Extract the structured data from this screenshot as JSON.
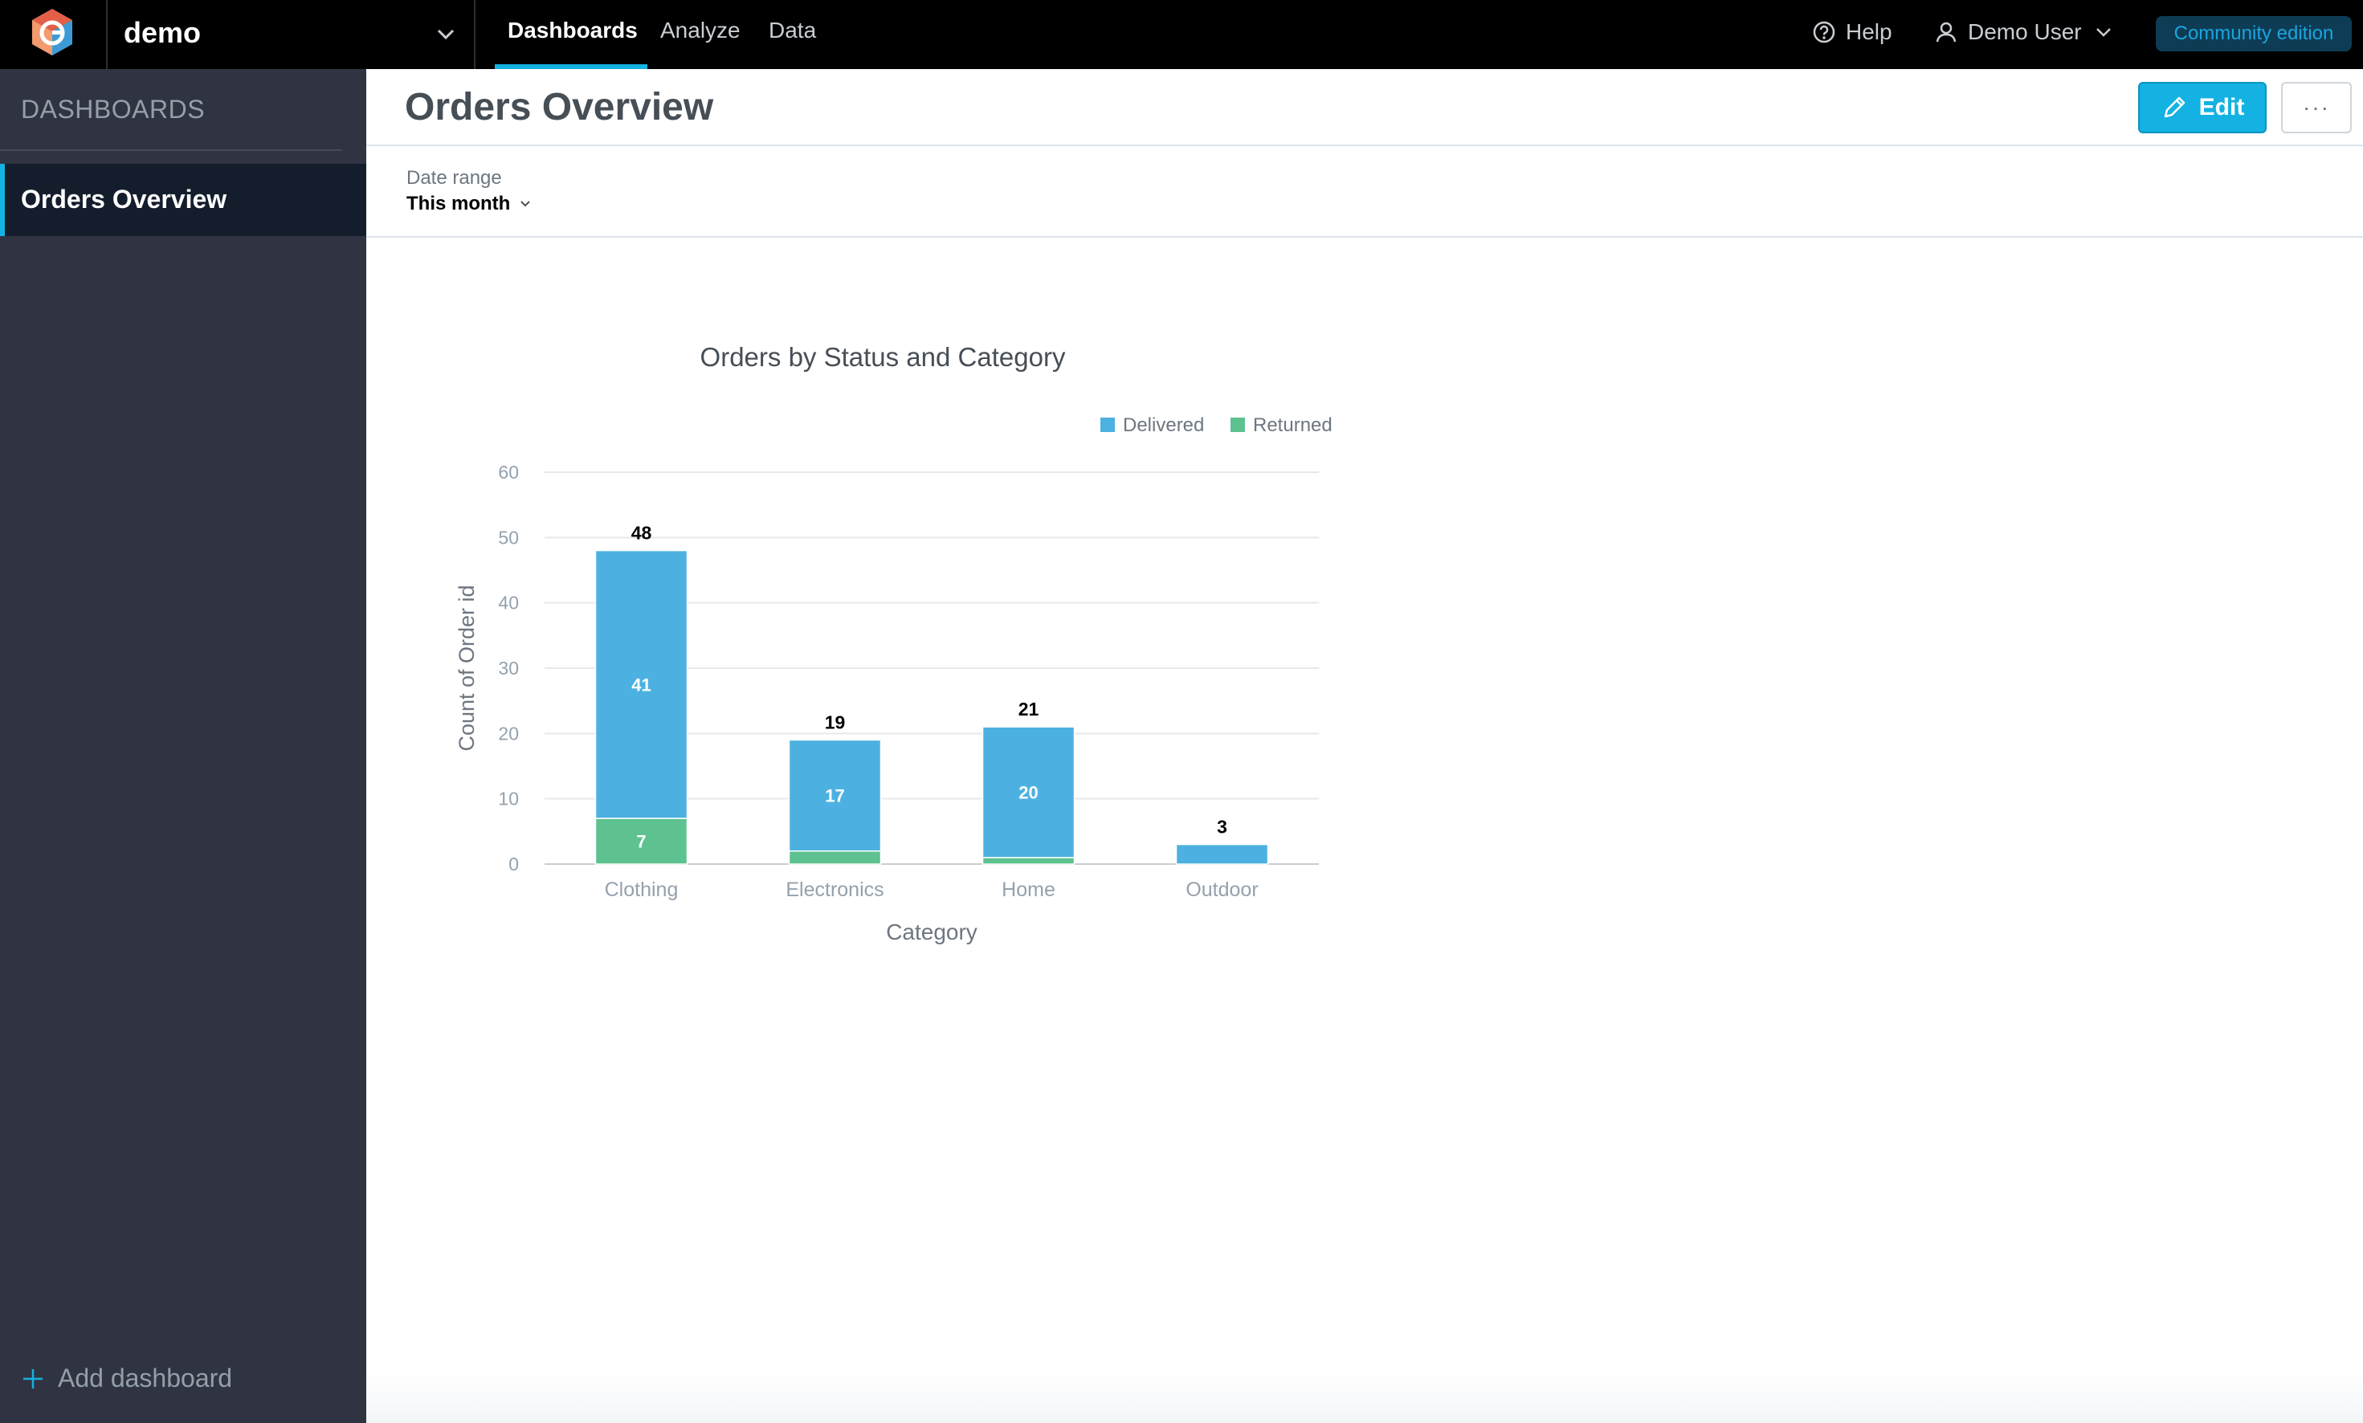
{
  "topbar": {
    "workspace_name": "demo",
    "nav": [
      {
        "label": "Dashboards",
        "active": true
      },
      {
        "label": "Analyze",
        "active": false
      },
      {
        "label": "Data",
        "active": false
      }
    ],
    "help_label": "Help",
    "user_label": "Demo User",
    "edition_badge": "Community edition",
    "icons": {
      "logo": "gooddata-logo",
      "help": "help-circle-icon",
      "user": "user-icon",
      "chevron": "chevron-down-icon"
    }
  },
  "sidebar": {
    "heading": "DASHBOARDS",
    "items": [
      {
        "label": "Orders Overview",
        "selected": true
      }
    ],
    "add_label": "Add dashboard"
  },
  "dashboard": {
    "title": "Orders Overview",
    "edit_label": "Edit",
    "more_label": "···",
    "filter": {
      "label": "Date range",
      "value": "This month"
    }
  },
  "colors": {
    "accent": "#14b2e2",
    "delivered": "#4cb1e0",
    "returned": "#5dc28f"
  },
  "chart_data": {
    "type": "bar",
    "stacked": true,
    "title": "Orders by Status and Category",
    "xlabel": "Category",
    "ylabel": "Count of Order id",
    "categories": [
      "Clothing",
      "Electronics",
      "Home",
      "Outdoor"
    ],
    "series": [
      {
        "name": "Delivered",
        "values": [
          41,
          17,
          20,
          3
        ]
      },
      {
        "name": "Returned",
        "values": [
          7,
          2,
          1,
          0
        ]
      }
    ],
    "totals": [
      48,
      19,
      21,
      3
    ],
    "segment_labels": {
      "Delivered": [
        "41",
        "17",
        "20",
        ""
      ],
      "Returned": [
        "7",
        "",
        "",
        ""
      ]
    },
    "ylim": [
      0,
      60
    ],
    "yticks": [
      0,
      10,
      20,
      30,
      40,
      50,
      60
    ],
    "grid": true,
    "legend_position": "top-right"
  }
}
